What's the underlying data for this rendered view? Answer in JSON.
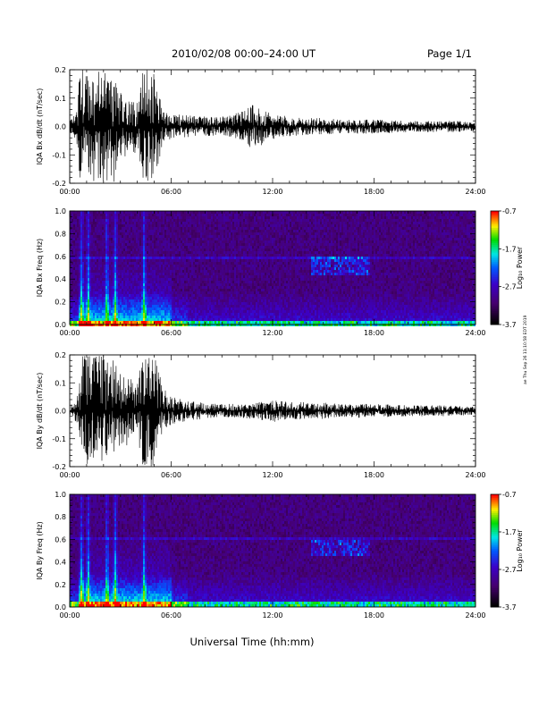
{
  "header": {
    "title": "2010/02/08  00:00–24:00 UT",
    "page": "Page 1/1"
  },
  "side_note": "ae Thu Sep 26 11:10:58 EDT 2019",
  "xaxis_label": "Universal Time (hh:mm)",
  "chart_data": [
    {
      "type": "line",
      "ylabel": "IQA Bx dB/dt (nT/sec)",
      "xlim": [
        0,
        24
      ],
      "ylim": [
        -0.2,
        0.2
      ],
      "xticks": [
        "00:00",
        "06:00",
        "12:00",
        "18:00",
        "24:00"
      ],
      "yticks": [
        "0.2",
        "0.1",
        "0.0",
        "-0.1",
        "-0.2"
      ],
      "envelope": {
        "hours": [
          0.0,
          0.4,
          0.6,
          1.0,
          1.4,
          2.0,
          2.6,
          3.0,
          3.6,
          4.0,
          4.3,
          4.7,
          5.0,
          5.5,
          6.0,
          7.0,
          8.0,
          9.0,
          10.0,
          10.5,
          11.0,
          11.5,
          12.0,
          13.0,
          14.0,
          15.0,
          16.0,
          18.0,
          20.0,
          22.0,
          24.0
        ],
        "amplitude": [
          0.02,
          0.05,
          0.2,
          0.2,
          0.2,
          0.2,
          0.2,
          0.12,
          0.1,
          0.09,
          0.2,
          0.2,
          0.2,
          0.06,
          0.045,
          0.04,
          0.035,
          0.035,
          0.05,
          0.07,
          0.08,
          0.06,
          0.045,
          0.035,
          0.03,
          0.03,
          0.025,
          0.025,
          0.02,
          0.02,
          0.02
        ]
      }
    },
    {
      "type": "heatmap",
      "ylabel": "IQA Bx Freq (Hz)",
      "xlim": [
        0,
        24
      ],
      "ylim": [
        0.0,
        1.0
      ],
      "xticks": [
        "00:00",
        "06:00",
        "12:00",
        "18:00",
        "24:00"
      ],
      "yticks": [
        "1.0",
        "0.8",
        "0.6",
        "0.4",
        "0.2",
        "0.0"
      ],
      "colorbar": {
        "label": "Log₁₀ Power",
        "min": -3.7,
        "max": -0.7,
        "ticks": [
          "-0.7",
          "-1.7",
          "-2.7",
          "-3.7"
        ]
      },
      "features": {
        "line_hz": 0.6,
        "burst_hours": [
          0.7,
          1.1,
          2.2,
          2.7,
          4.4
        ],
        "pc1_band_hours": [
          14.3,
          17.8
        ],
        "pc1_band_hz": [
          0.45,
          0.6
        ]
      }
    },
    {
      "type": "line",
      "ylabel": "IQA By dB/dt (nT/sec)",
      "xlim": [
        0,
        24
      ],
      "ylim": [
        -0.2,
        0.2
      ],
      "xticks": [
        "00:00",
        "06:00",
        "12:00",
        "18:00",
        "24:00"
      ],
      "yticks": [
        "0.2",
        "0.1",
        "0.0",
        "-0.1",
        "-0.2"
      ],
      "envelope": {
        "hours": [
          0.0,
          0.5,
          0.7,
          1.0,
          1.5,
          2.0,
          2.5,
          3.0,
          3.5,
          4.0,
          4.3,
          4.7,
          5.0,
          5.5,
          6.0,
          7.0,
          8.0,
          9.0,
          10.0,
          11.0,
          12.0,
          13.0,
          14.0,
          15.0,
          16.0,
          18.0,
          20.0,
          22.0,
          24.0
        ],
        "amplitude": [
          0.02,
          0.06,
          0.2,
          0.2,
          0.2,
          0.2,
          0.2,
          0.14,
          0.12,
          0.1,
          0.2,
          0.2,
          0.2,
          0.09,
          0.05,
          0.035,
          0.03,
          0.025,
          0.025,
          0.03,
          0.04,
          0.035,
          0.03,
          0.03,
          0.025,
          0.025,
          0.02,
          0.02,
          0.015
        ]
      }
    },
    {
      "type": "heatmap",
      "ylabel": "IQA By Freq (Hz)",
      "xlim": [
        0,
        24
      ],
      "ylim": [
        0.0,
        1.0
      ],
      "xticks": [
        "00:00",
        "06:00",
        "12:00",
        "18:00",
        "24:00"
      ],
      "yticks": [
        "1.0",
        "0.8",
        "0.6",
        "0.4",
        "0.2",
        "0.0"
      ],
      "colorbar": {
        "label": "Log₁₀ Power",
        "min": -3.7,
        "max": -0.7,
        "ticks": [
          "-0.7",
          "-1.7",
          "-2.7",
          "-3.7"
        ]
      },
      "features": {
        "line_hz": 0.6,
        "burst_hours": [
          0.7,
          1.1,
          2.2,
          2.7,
          4.4
        ],
        "pc1_band_hours": [
          14.3,
          17.8
        ],
        "pc1_band_hz": [
          0.45,
          0.6
        ]
      }
    }
  ]
}
